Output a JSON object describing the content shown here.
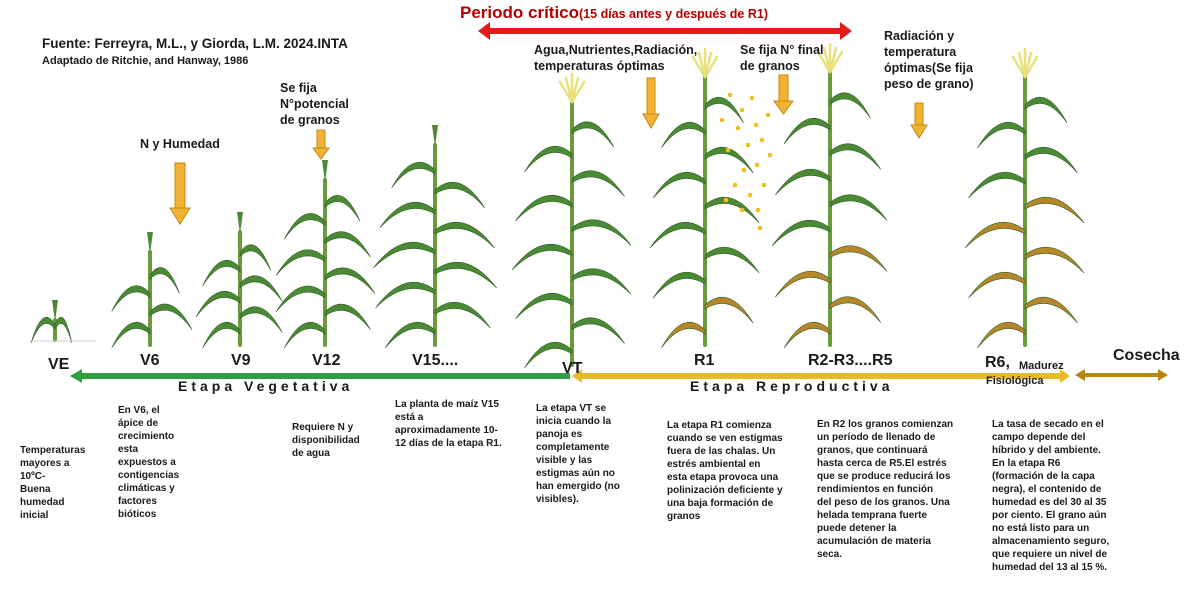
{
  "source": {
    "line1": "Fuente: Ferreyra, M.L., y Giorda, L.M.  2024.INTA",
    "line2": "Adaptado de Ritchie, and Hanway, 1986"
  },
  "critical_period": {
    "title": "Periodo crítico",
    "subtitle": "(15 días antes y después de R1)",
    "color": "#e31b1b"
  },
  "annotations": {
    "n_humedad": "N y Humedad",
    "potencial": [
      "Se fija",
      "N°potencial",
      "de granos"
    ],
    "agua": [
      "Agua,Nutrientes,Radiación,",
      "temperaturas óptimas"
    ],
    "se_fija_final": [
      "Se fija  N° final",
      "de granos"
    ],
    "radiacion": [
      "Radiación y",
      "temperatura",
      "óptimas(Se fija",
      "peso de grano)"
    ]
  },
  "stages": {
    "ve": "VE",
    "v6": "V6",
    "v9": "V9",
    "v12": "V12",
    "v15": "V15....",
    "vt": "VT",
    "r1": "R1",
    "r2r5": "R2-R3....R5",
    "r6": "R6,",
    "r6_sub": [
      "Madurez",
      "Fisiológica"
    ],
    "cosecha": "Cosecha"
  },
  "phases": {
    "vegetativa": "Etapa Vegetativa",
    "reproductiva": "Etapa Reproductiva",
    "colors": {
      "vegetativa": "#2e9e41",
      "reproductiva": "#e9b92c",
      "cosecha": "#b8860b"
    }
  },
  "descriptions": {
    "ve": [
      "Temperaturas",
      "mayores a",
      "10ºC-",
      "Buena",
      "humedad",
      "inicial"
    ],
    "v6": [
      "En V6, el",
      "ápice de",
      "crecimiento",
      "esta",
      "expuestos a",
      "contigencias",
      "climáticas y",
      "factores",
      "bióticos"
    ],
    "v12": [
      "Requiere N y",
      "disponibilidad",
      "de agua"
    ],
    "v15": [
      "La planta de maíz V15",
      "está a",
      "aproximadamente 10-",
      "12 días de la etapa R1."
    ],
    "vt": [
      "La etapa VT se",
      "inicia cuando la",
      "panoja es",
      "completamente",
      "visible y las",
      "estigmas aún no",
      "han emergido (no",
      "visibles)."
    ],
    "r1": [
      "La etapa R1 comienza",
      "cuando se ven estigmas",
      "fuera de las chalas. Un",
      "estrés ambiental en",
      "esta etapa provoca una",
      "polinización deficiente y",
      "una baja formación de",
      "granos"
    ],
    "r2": [
      "En R2 los granos comienzan",
      "un período de llenado de",
      "granos, que continuará",
      "hasta cerca de R5.El estrés",
      "que se produce  reducirá los",
      "rendimientos en función",
      "del peso de los granos.  Una",
      "helada temprana fuerte",
      "puede detener la",
      "acumulación de materia",
      "seca."
    ],
    "r6": [
      "La tasa de secado en el",
      "campo depende del",
      "híbrido y del ambiente.",
      "En la etapa R6",
      "(formación de la capa",
      "negra), el contenido de",
      "humedad es del 30 al 35",
      "por ciento. El grano aún",
      "no está listo para un",
      "almacenamiento seguro,",
      "que requiere un nivel de",
      "humedad del 13 al 15 %."
    ]
  },
  "colors": {
    "arrow": "#f2b233",
    "leaf": "#4a8a35",
    "dry_leaf": "#b5872a",
    "stalk": "#6a9a3c",
    "tassel": "#e8e07a"
  }
}
